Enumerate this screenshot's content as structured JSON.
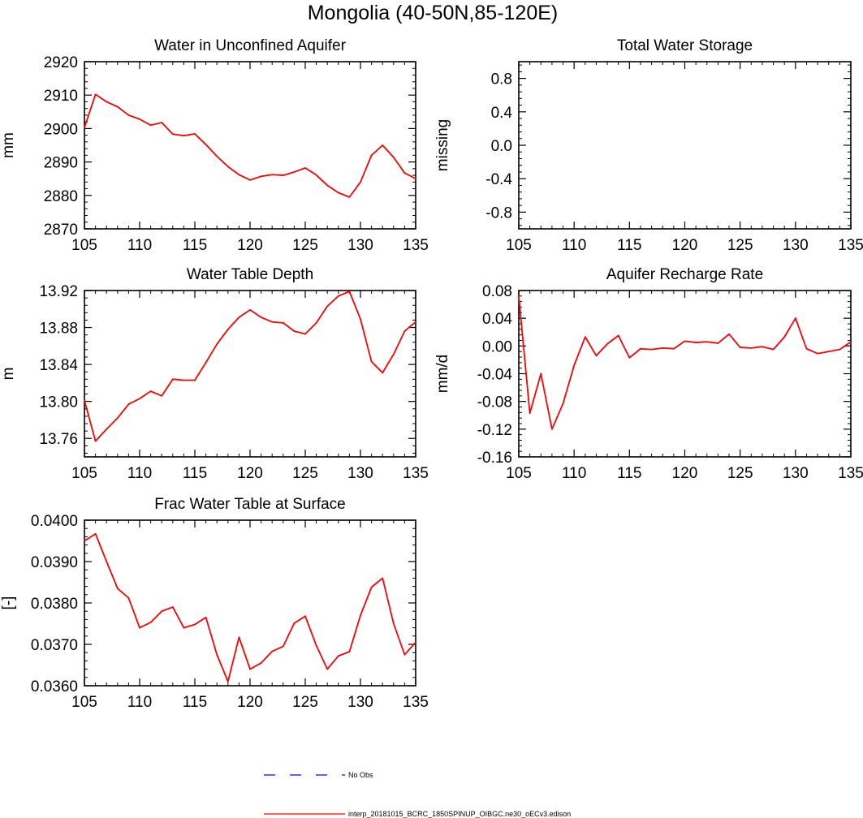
{
  "figure": {
    "title": "Mongolia (40-50N,85-120E)",
    "colors": {
      "model": "#ff0000",
      "obs": "#0000ff",
      "axis": "#000000"
    },
    "legend": {
      "obs_label": "No Obs",
      "model_label": "interp_20181015_BCRC_1850SPINUP_OIBGC.ne30_oECv3.edison"
    }
  },
  "chart_data": [
    {
      "id": "water-in-unconfined-aquifer",
      "type": "line",
      "title": "Water in Unconfined Aquifer",
      "ylabel": "mm",
      "xlim": [
        105,
        135
      ],
      "ylim": [
        2870,
        2920
      ],
      "xticks": [
        105,
        110,
        115,
        120,
        125,
        130,
        135
      ],
      "xtick_labels": [
        "105",
        "110",
        "115",
        "120",
        "125",
        "130",
        "135"
      ],
      "yticks": [
        2870,
        2880,
        2890,
        2900,
        2910,
        2920
      ],
      "ytick_labels": [
        "2870",
        "2880",
        "2890",
        "2900",
        "2910",
        "2920"
      ],
      "grid": false,
      "x": [
        105,
        106,
        107,
        108,
        109,
        110,
        111,
        112,
        113,
        114,
        115,
        116,
        117,
        118,
        119,
        120,
        121,
        122,
        123,
        124,
        125,
        126,
        127,
        128,
        129,
        130,
        131,
        132,
        133,
        134,
        135
      ],
      "y": [
        2900.3,
        2910.2,
        2908.0,
        2906.5,
        2904.0,
        2902.8,
        2901.0,
        2901.8,
        2898.3,
        2897.9,
        2898.4,
        2895.2,
        2891.7,
        2888.6,
        2886.2,
        2884.6,
        2885.7,
        2886.2,
        2886.0,
        2887.0,
        2888.2,
        2886.1,
        2883.0,
        2880.8,
        2879.5,
        2884.0,
        2892.0,
        2895.0,
        2891.4,
        2886.7,
        2885.0
      ]
    },
    {
      "id": "total-water-storage",
      "type": "line",
      "title": "Total Water Storage",
      "ylabel": "missing",
      "xlim": [
        105,
        135
      ],
      "ylim": [
        -1.0,
        1.0
      ],
      "xticks": [
        105,
        110,
        115,
        120,
        125,
        130,
        135
      ],
      "xtick_labels": [
        "105",
        "110",
        "115",
        "120",
        "125",
        "130",
        "135"
      ],
      "yticks": [
        -0.8,
        -0.4,
        0.0,
        0.4,
        0.8
      ],
      "ytick_labels": [
        "-0.8",
        "-0.4",
        "0.0",
        "0.4",
        "0.8"
      ],
      "grid": false,
      "x": [],
      "y": []
    },
    {
      "id": "water-table-depth",
      "type": "line",
      "title": "Water Table Depth",
      "ylabel": "m",
      "xlim": [
        105,
        135
      ],
      "ylim": [
        13.74,
        13.92
      ],
      "xticks": [
        105,
        110,
        115,
        120,
        125,
        130,
        135
      ],
      "xtick_labels": [
        "105",
        "110",
        "115",
        "120",
        "125",
        "130",
        "135"
      ],
      "yticks": [
        13.76,
        13.8,
        13.84,
        13.88,
        13.92
      ],
      "ytick_labels": [
        "13.76",
        "13.80",
        "13.84",
        "13.88",
        "13.92"
      ],
      "grid": false,
      "x": [
        105,
        106,
        107,
        108,
        109,
        110,
        111,
        112,
        113,
        114,
        115,
        116,
        117,
        118,
        119,
        120,
        121,
        122,
        123,
        124,
        125,
        126,
        127,
        128,
        129,
        130,
        131,
        132,
        133,
        134,
        135
      ],
      "y": [
        13.801,
        13.757,
        13.77,
        13.782,
        13.797,
        13.803,
        13.811,
        13.806,
        13.824,
        13.823,
        13.823,
        13.842,
        13.862,
        13.878,
        13.891,
        13.899,
        13.891,
        13.886,
        13.885,
        13.876,
        13.873,
        13.885,
        13.903,
        13.914,
        13.919,
        13.889,
        13.843,
        13.831,
        13.851,
        13.876,
        13.886
      ]
    },
    {
      "id": "aquifer-recharge-rate",
      "type": "line",
      "title": "Aquifer Recharge Rate",
      "ylabel": "mm/d",
      "xlim": [
        105,
        135
      ],
      "ylim": [
        -0.16,
        0.08
      ],
      "xticks": [
        105,
        110,
        115,
        120,
        125,
        130,
        135
      ],
      "xtick_labels": [
        "105",
        "110",
        "115",
        "120",
        "125",
        "130",
        "135"
      ],
      "yticks": [
        -0.16,
        -0.12,
        -0.08,
        -0.04,
        0.0,
        0.04,
        0.08
      ],
      "ytick_labels": [
        "-0.16",
        "-0.12",
        "-0.08",
        "-0.04",
        "0.00",
        "0.04",
        "0.08"
      ],
      "grid": false,
      "x": [
        105,
        106,
        107,
        108,
        109,
        110,
        111,
        112,
        113,
        114,
        115,
        116,
        117,
        118,
        119,
        120,
        121,
        122,
        123,
        124,
        125,
        126,
        127,
        128,
        129,
        130,
        131,
        132,
        133,
        134,
        135
      ],
      "y": [
        0.072,
        -0.097,
        -0.04,
        -0.12,
        -0.083,
        -0.028,
        0.013,
        -0.014,
        0.003,
        0.015,
        -0.017,
        -0.004,
        -0.005,
        -0.003,
        -0.004,
        0.007,
        0.005,
        0.006,
        0.004,
        0.017,
        -0.002,
        -0.003,
        -0.001,
        -0.005,
        0.013,
        0.04,
        -0.004,
        -0.011,
        -0.008,
        -0.005,
        0.006
      ]
    },
    {
      "id": "frac-water-table-at-surface",
      "type": "line",
      "title": "Frac Water Table at Surface",
      "ylabel": "[-]",
      "xlim": [
        105,
        135
      ],
      "ylim": [
        0.036,
        0.04
      ],
      "xticks": [
        105,
        110,
        115,
        120,
        125,
        130,
        135
      ],
      "xtick_labels": [
        "105",
        "110",
        "115",
        "120",
        "125",
        "130",
        "135"
      ],
      "yticks": [
        0.036,
        0.037,
        0.038,
        0.039,
        0.04
      ],
      "ytick_labels": [
        "0.0360",
        "0.0370",
        "0.0380",
        "0.0390",
        "0.0400"
      ],
      "grid": false,
      "x": [
        105,
        106,
        107,
        108,
        109,
        110,
        111,
        112,
        113,
        114,
        115,
        116,
        117,
        118,
        119,
        120,
        121,
        122,
        123,
        124,
        125,
        126,
        127,
        128,
        129,
        130,
        131,
        132,
        133,
        134,
        135
      ],
      "y": [
        0.0395,
        0.03967,
        0.039,
        0.03835,
        0.03812,
        0.0374,
        0.03753,
        0.0378,
        0.0379,
        0.0374,
        0.03748,
        0.03765,
        0.03675,
        0.0361,
        0.03717,
        0.0364,
        0.03655,
        0.03683,
        0.03695,
        0.03751,
        0.03768,
        0.03697,
        0.0364,
        0.03672,
        0.03682,
        0.0377,
        0.03838,
        0.0386,
        0.0375,
        0.03675,
        0.03705
      ]
    }
  ]
}
